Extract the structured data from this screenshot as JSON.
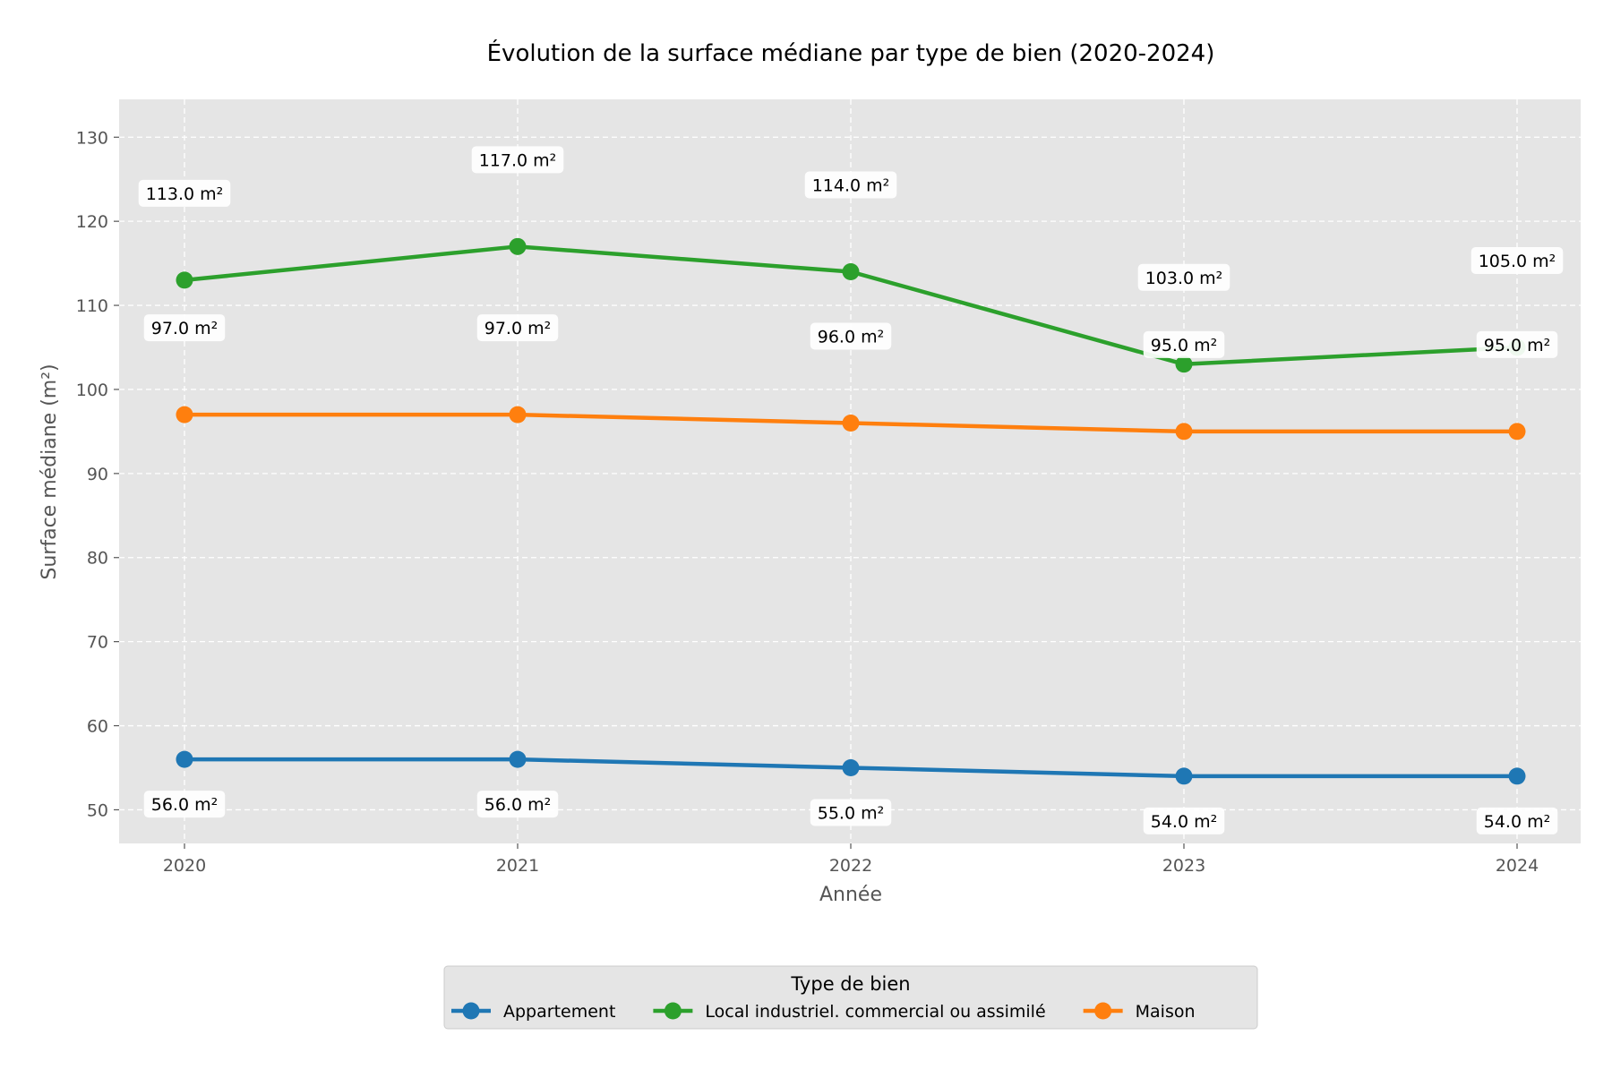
{
  "chart_data": {
    "type": "line",
    "title": "Évolution de la surface médiane par type de bien (2020-2024)",
    "xlabel": "Année",
    "ylabel": "Surface médiane (m²)",
    "categories": [
      "2020",
      "2021",
      "2022",
      "2023",
      "2024"
    ],
    "ylim": [
      46,
      134.5
    ],
    "yticks": [
      50,
      60,
      70,
      80,
      90,
      100,
      110,
      120,
      130
    ],
    "grid": true,
    "legend": {
      "title": "Type de bien",
      "position": "bottom-center"
    },
    "unit_suffix": " m²",
    "series": [
      {
        "name": "Appartement",
        "color": "#1f77b4",
        "values": [
          56.0,
          56.0,
          55.0,
          54.0,
          54.0
        ],
        "label_position": "below"
      },
      {
        "name": "Local industriel. commercial ou assimilé",
        "color": "#2ca02c",
        "values": [
          113.0,
          117.0,
          114.0,
          103.0,
          105.0
        ],
        "label_position": "above"
      },
      {
        "name": "Maison",
        "color": "#ff7f0e",
        "values": [
          97.0,
          97.0,
          96.0,
          95.0,
          95.0
        ],
        "label_position": "above"
      }
    ]
  }
}
